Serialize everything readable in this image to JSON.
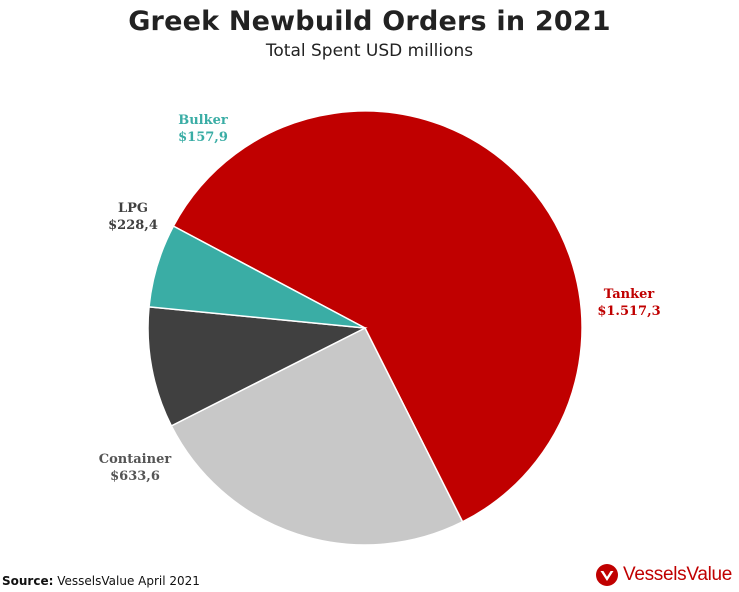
{
  "chart_data": {
    "type": "pie",
    "title": "Greek Newbuild Orders in 2021",
    "subtitle": "Total Spent USD millions",
    "slices": [
      {
        "name": "Tanker",
        "value": 1517.3,
        "label": "$1.517,3",
        "color": "#c00000",
        "label_color": "#c00000"
      },
      {
        "name": "Container",
        "value": 633.6,
        "label": "$633,6",
        "color": "#c8c8c8",
        "label_color": "#555555"
      },
      {
        "name": "LPG",
        "value": 228.4,
        "label": "$228,4",
        "color": "#404040",
        "label_color": "#404040"
      },
      {
        "name": "Bulker",
        "value": 157.9,
        "label": "$157,9",
        "color": "#3aada5",
        "label_color": "#3aada5"
      }
    ]
  },
  "footer": {
    "source_label": "Source:",
    "source_text": "VesselsValue April 2021"
  },
  "logo": {
    "text": "VesselsValue",
    "color": "#c00000"
  }
}
